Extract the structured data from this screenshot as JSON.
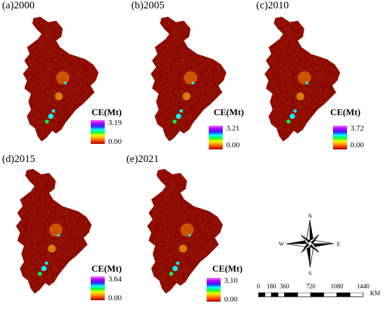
{
  "colors": {
    "map_dark": "#8b0000",
    "map_mid": "#c41e00",
    "map_hot": "#ff8c00",
    "accent_cyan": "#00ffff",
    "accent_green": "#00ff40"
  },
  "legend_title": "CE(Mt)",
  "panels": [
    {
      "label": "(a)2000",
      "max": "3.19",
      "min": "0.00"
    },
    {
      "label": "(b)2005",
      "max": "3.21",
      "min": "0.00"
    },
    {
      "label": "(c)2010",
      "max": "3.72",
      "min": "0.00"
    },
    {
      "label": "(d)2015",
      "max": "3.64",
      "min": "0.00"
    },
    {
      "label": "(e)2021",
      "max": "3.10",
      "min": "0.00"
    }
  ],
  "compass": {
    "n": "N",
    "s": "S",
    "e": "E",
    "w": "W"
  },
  "scale": {
    "ticks": [
      "0",
      "180",
      "360",
      "720",
      "1080",
      "1440"
    ],
    "tick_values": [
      0,
      180,
      360,
      720,
      1080,
      1440
    ],
    "unit": "KM"
  }
}
